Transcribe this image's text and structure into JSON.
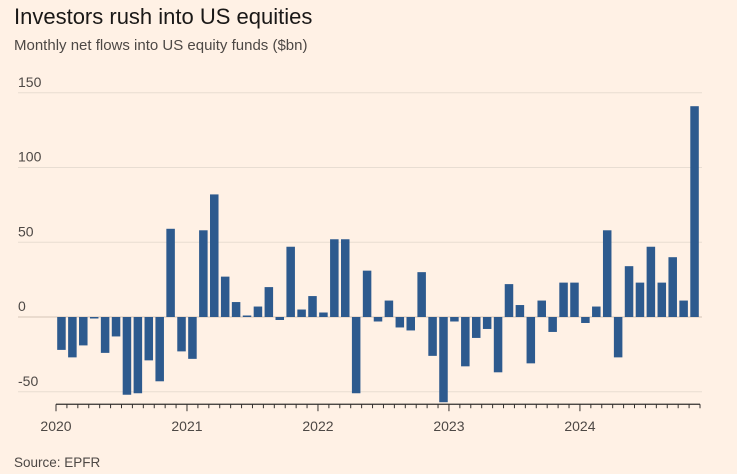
{
  "title": "Investors rush into US equities",
  "subtitle": "Monthly net flows into US equity funds ($bn)",
  "source": "Source: EPFR",
  "colors": {
    "background": "#FFF1E5",
    "bar": "#2D5A8E",
    "grid": "#E8DDD2",
    "axis": "#33302E"
  },
  "chart_data": {
    "type": "bar",
    "title": "Investors rush into US equities",
    "subtitle": "Monthly net flows into US equity funds ($bn)",
    "xlabel": "",
    "ylabel": "",
    "ylim": [
      -57,
      150
    ],
    "yticks": [
      -50,
      0,
      50,
      100,
      150
    ],
    "ytick_labels": [
      "-50",
      "0",
      "50",
      "100",
      "150"
    ],
    "xtick_labels": [
      "2020",
      "2021",
      "2022",
      "2023",
      "2024"
    ],
    "grid": true,
    "legend": "none",
    "start": "2020-01",
    "values": [
      -22,
      -27,
      -19,
      -1,
      -24,
      -13,
      -52,
      -51,
      -29,
      -43,
      59,
      -23,
      -28,
      58,
      82,
      27,
      10,
      1,
      7,
      20,
      -2,
      47,
      5,
      14,
      3,
      52,
      52,
      -51,
      31,
      -3,
      11,
      -7,
      -9,
      30,
      -26,
      -57,
      -3,
      -33,
      -14,
      -8,
      -37,
      22,
      8,
      -31,
      11,
      -10,
      23,
      23,
      -4,
      7,
      58,
      -27,
      34,
      23,
      47,
      23,
      40,
      11,
      141
    ]
  }
}
